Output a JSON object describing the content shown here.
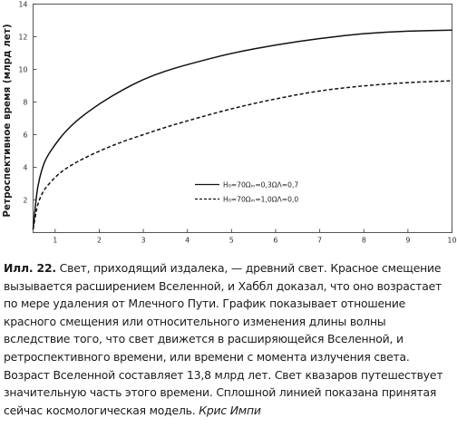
{
  "chart_data": {
    "type": "line",
    "title": "",
    "xlabel": "",
    "ylabel": "Ретроспективное время (млрд лет)",
    "xlim": [
      0.5,
      10
    ],
    "ylim": [
      0,
      14
    ],
    "xticks": [
      1,
      2,
      3,
      4,
      5,
      6,
      7,
      8,
      9,
      10
    ],
    "yticks": [
      2,
      4,
      6,
      8,
      10,
      12,
      14
    ],
    "grid": false,
    "legend_position": "center-right",
    "series": [
      {
        "name": "H₀=70Ωₘ=0,3ΩΛ=0,7",
        "style": "solid",
        "x": [
          0.5,
          0.55,
          0.6,
          0.7,
          0.8,
          1.0,
          1.2,
          1.5,
          2.0,
          2.5,
          3.0,
          3.5,
          4.0,
          5.0,
          6.0,
          7.0,
          8.0,
          9.0,
          10.0
        ],
        "y": [
          0.2,
          1.6,
          2.8,
          3.9,
          4.6,
          5.4,
          6.1,
          6.9,
          7.9,
          8.7,
          9.4,
          9.9,
          10.3,
          11.0,
          11.5,
          11.9,
          12.2,
          12.35,
          12.4
        ]
      },
      {
        "name": "H₀=70Ωₘ=1,0ΩΛ=0,0",
        "style": "dashed",
        "x": [
          0.5,
          0.55,
          0.6,
          0.7,
          0.8,
          1.0,
          1.2,
          1.5,
          2.0,
          2.5,
          3.0,
          3.5,
          4.0,
          5.0,
          6.0,
          7.0,
          8.0,
          9.0,
          10.0
        ],
        "y": [
          0.2,
          1.0,
          1.7,
          2.4,
          2.8,
          3.4,
          3.85,
          4.35,
          5.0,
          5.55,
          6.0,
          6.45,
          6.85,
          7.6,
          8.2,
          8.7,
          9.0,
          9.2,
          9.3
        ]
      }
    ]
  },
  "caption": {
    "label": "Илл. 22.",
    "text": " Свет, приходящий издалека, — древний свет. Красное смещение вызывается расширением Вселенной, и Хаббл доказал, что оно возрастает по мере удаления от Млечного Пути. График показывает отношение красного смещения или относительного изменения длины волны вследствие того, что свет движется в расширяющейся Вселенной, и ретроспективного времени, или времени с момента излучения света. Возраст Вселенной составляет 13,8 млрд лет. Свет квазаров путешествует значительную часть этого времени. Сплошной линией показана принятая сейчас космологическая модель. ",
    "author": "Крис Импи"
  }
}
